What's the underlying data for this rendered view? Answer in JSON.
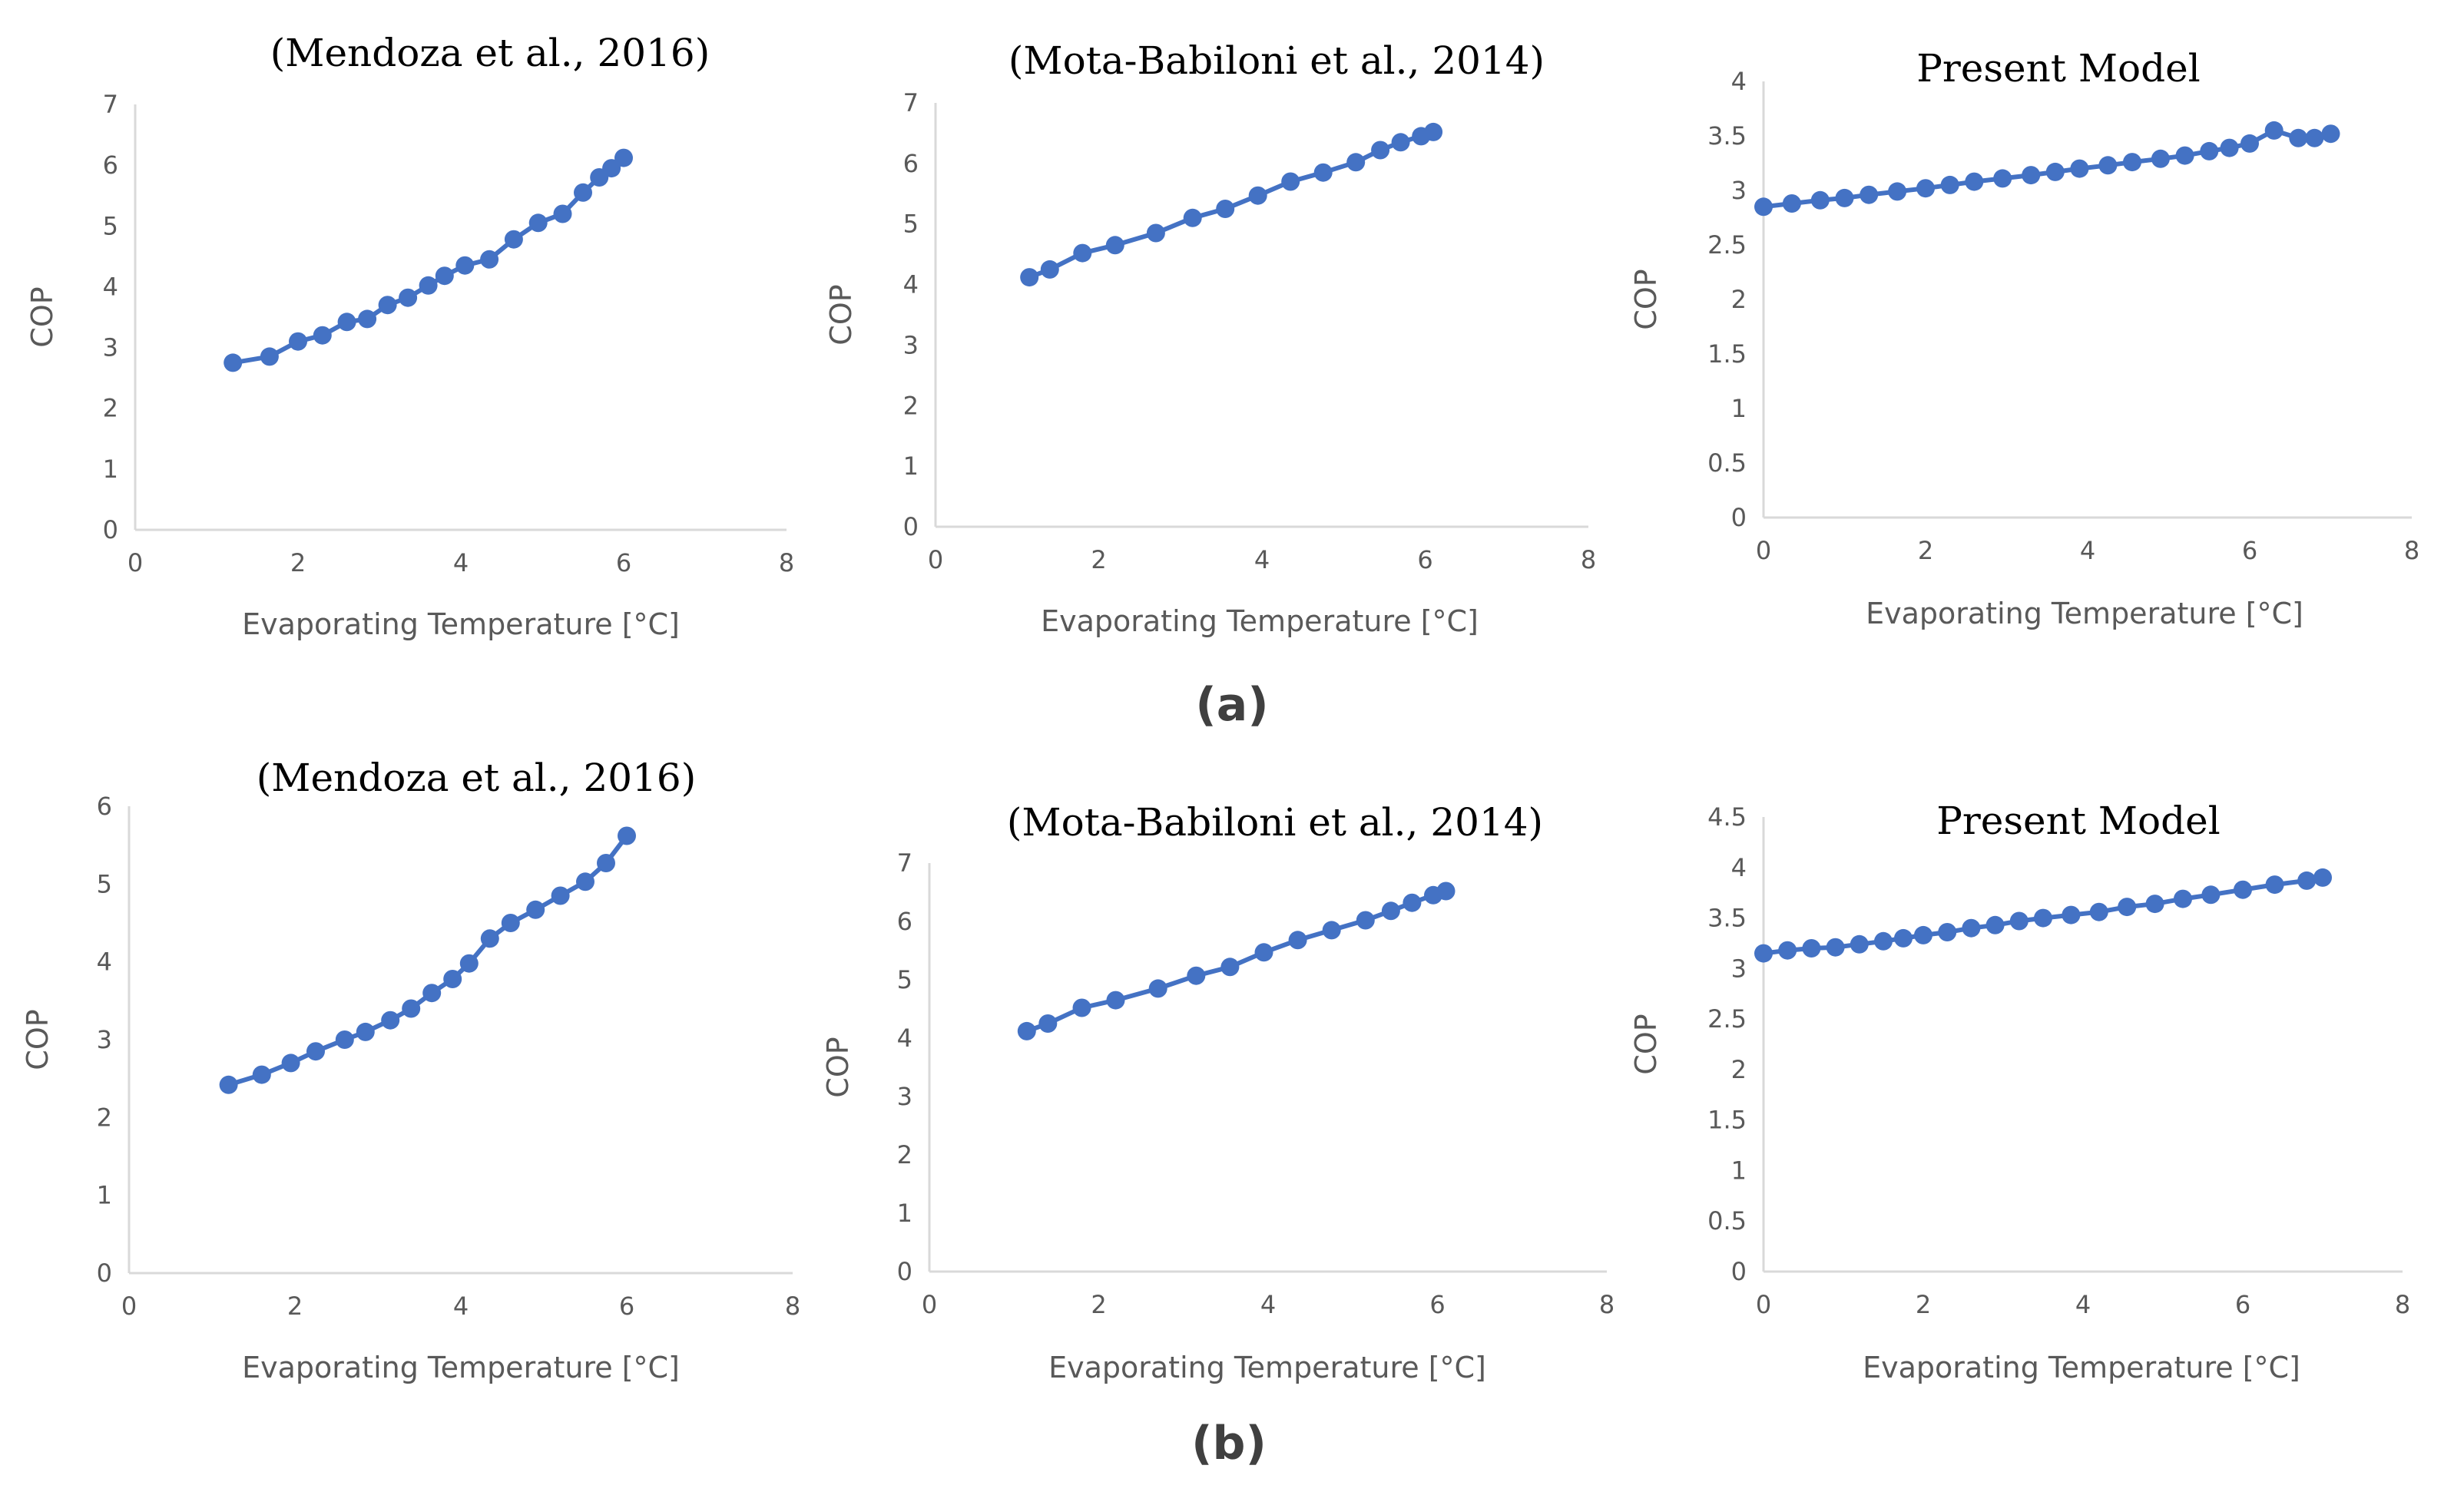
{
  "figure": {
    "row_labels": [
      "(a)",
      "(b)"
    ]
  },
  "style": {
    "series_color": "#4472c4",
    "axis_color": "#d9d9d9",
    "tick_text_color": "#595959"
  },
  "chart_data": [
    {
      "id": "a1",
      "type": "line",
      "title": "(Mendoza et al., 2016)",
      "xlabel": "Evaporating Temperature  [°C]",
      "ylabel": "COP",
      "xlim": [
        0,
        8
      ],
      "ylim": [
        0,
        7
      ],
      "xstep": 2,
      "ystep": 1,
      "grid": false,
      "x": [
        1.2,
        1.65,
        2.0,
        2.3,
        2.6,
        2.85,
        3.1,
        3.35,
        3.6,
        3.8,
        4.05,
        4.35,
        4.65,
        4.95,
        5.25,
        5.5,
        5.7,
        5.85,
        6.0
      ],
      "y": [
        2.75,
        2.85,
        3.1,
        3.2,
        3.42,
        3.47,
        3.7,
        3.82,
        4.02,
        4.18,
        4.35,
        4.45,
        4.78,
        5.05,
        5.2,
        5.55,
        5.8,
        5.95,
        6.12
      ]
    },
    {
      "id": "a2",
      "type": "line",
      "title": "(Mota-Babiloni et al., 2014)",
      "xlabel": "Evaporating Temperature  [°C]",
      "ylabel": "COP",
      "xlim": [
        0,
        8
      ],
      "ylim": [
        0,
        7
      ],
      "xstep": 2,
      "ystep": 1,
      "grid": false,
      "x": [
        1.15,
        1.4,
        1.8,
        2.2,
        2.7,
        3.15,
        3.55,
        3.95,
        4.35,
        4.75,
        5.15,
        5.45,
        5.7,
        5.95,
        6.1
      ],
      "y": [
        4.12,
        4.25,
        4.52,
        4.65,
        4.85,
        5.1,
        5.25,
        5.47,
        5.7,
        5.85,
        6.02,
        6.22,
        6.35,
        6.45,
        6.52
      ]
    },
    {
      "id": "a3",
      "type": "line",
      "title": "Present Model",
      "xlabel": "Evaporating Temperature  [°C]",
      "ylabel": "COP",
      "xlim": [
        0,
        8
      ],
      "ylim": [
        0,
        4
      ],
      "xstep": 2,
      "ystep": 0.5,
      "grid": false,
      "x": [
        0,
        0.35,
        0.7,
        1.0,
        1.3,
        1.65,
        2.0,
        2.3,
        2.6,
        2.95,
        3.3,
        3.6,
        3.9,
        4.25,
        4.55,
        4.9,
        5.2,
        5.5,
        5.75,
        6.0,
        6.3,
        6.6,
        6.8,
        7.0
      ],
      "y": [
        2.85,
        2.88,
        2.91,
        2.93,
        2.96,
        2.99,
        3.02,
        3.05,
        3.08,
        3.11,
        3.14,
        3.17,
        3.2,
        3.23,
        3.26,
        3.29,
        3.32,
        3.36,
        3.39,
        3.43,
        3.55,
        3.48,
        3.48,
        3.52
      ]
    },
    {
      "id": "b1",
      "type": "line",
      "title": "(Mendoza et al., 2016)",
      "xlabel": "Evaporating Temperature  [°C]",
      "ylabel": "COP",
      "xlim": [
        0,
        8
      ],
      "ylim": [
        0,
        6
      ],
      "xstep": 2,
      "ystep": 1,
      "grid": false,
      "x": [
        1.2,
        1.6,
        1.95,
        2.25,
        2.6,
        2.85,
        3.15,
        3.4,
        3.65,
        3.9,
        4.1,
        4.35,
        4.6,
        4.9,
        5.2,
        5.5,
        5.75,
        6.0
      ],
      "y": [
        2.42,
        2.55,
        2.7,
        2.85,
        3.0,
        3.1,
        3.25,
        3.4,
        3.6,
        3.78,
        3.98,
        4.3,
        4.5,
        4.67,
        4.85,
        5.03,
        5.27,
        5.62
      ]
    },
    {
      "id": "b2",
      "type": "line",
      "title": "(Mota-Babiloni et al., 2014)",
      "xlabel": "Evaporating Temperature  [°C]",
      "ylabel": "COP",
      "xlim": [
        0,
        8
      ],
      "ylim": [
        0,
        7
      ],
      "xstep": 2,
      "ystep": 1,
      "grid": false,
      "x": [
        1.15,
        1.4,
        1.8,
        2.2,
        2.7,
        3.15,
        3.55,
        3.95,
        4.35,
        4.75,
        5.15,
        5.45,
        5.7,
        5.95,
        6.1
      ],
      "y": [
        4.12,
        4.25,
        4.52,
        4.65,
        4.85,
        5.07,
        5.22,
        5.47,
        5.68,
        5.85,
        6.02,
        6.18,
        6.32,
        6.45,
        6.52
      ]
    },
    {
      "id": "b3",
      "type": "line",
      "title": "Present Model",
      "xlabel": "Evaporating Temperature  [°C]",
      "ylabel": "COP",
      "xlim": [
        0,
        8
      ],
      "ylim": [
        0,
        4.5
      ],
      "xstep": 2,
      "ystep": 0.5,
      "grid": false,
      "x": [
        0,
        0.3,
        0.6,
        0.9,
        1.2,
        1.5,
        1.75,
        2.0,
        2.3,
        2.6,
        2.9,
        3.2,
        3.5,
        3.85,
        4.2,
        4.55,
        4.9,
        5.25,
        5.6,
        6.0,
        6.4,
        6.8,
        7.0
      ],
      "y": [
        3.15,
        3.18,
        3.2,
        3.21,
        3.24,
        3.27,
        3.3,
        3.33,
        3.36,
        3.4,
        3.43,
        3.47,
        3.5,
        3.53,
        3.56,
        3.61,
        3.64,
        3.69,
        3.73,
        3.78,
        3.83,
        3.87,
        3.9
      ]
    }
  ]
}
